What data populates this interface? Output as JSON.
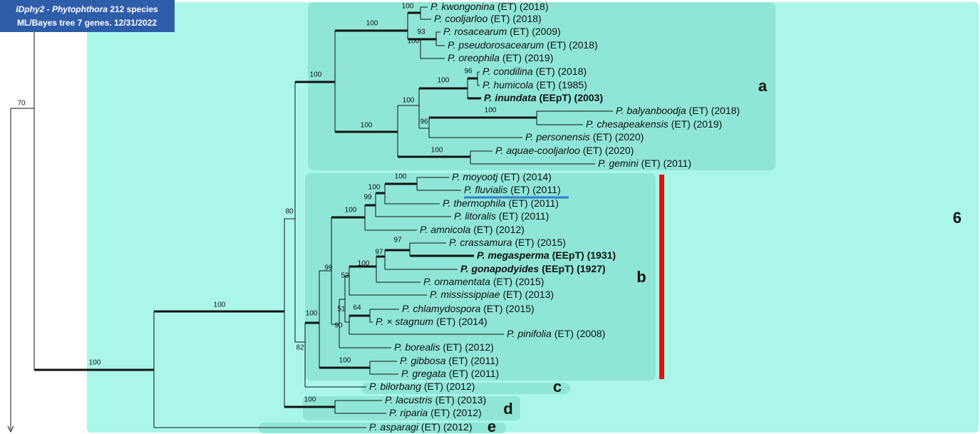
{
  "header": {
    "title": "IDphy2 - Phytophthora",
    "title_rest": "212 species",
    "subtitle": "ML/Bayes tree 7 genes. 12/31/2022"
  },
  "clade_labels": [
    "a",
    "b",
    "c",
    "d",
    "e",
    "6"
  ],
  "leaves": [
    {
      "species": "P. kwongonina",
      "info": "(ET) (2018)"
    },
    {
      "species": "P. cooljarloo",
      "info": "(ET) (2018)"
    },
    {
      "species": "P. rosacearum",
      "info": "(ET) (2009)"
    },
    {
      "species": "P. pseudorosacearum",
      "info": "(ET) (2018)"
    },
    {
      "species": "P. oreophila",
      "info": "(ET) (2019)"
    },
    {
      "species": "P. condilina",
      "info": "(ET) (2018)"
    },
    {
      "species": "P. humicola",
      "info": "(ET) (1985)"
    },
    {
      "species": "P. inundata",
      "info": "(EEpT) (2003)",
      "bold": true
    },
    {
      "species": "P. balyanboodja",
      "info": "(ET) (2018)"
    },
    {
      "species": "P. chesapeakensis",
      "info": "(ET) (2019)"
    },
    {
      "species": "P. personensis",
      "info": "(ET) (2020)"
    },
    {
      "species": "P. aquae-cooljarloo",
      "info": "(ET) (2020)"
    },
    {
      "species": "P. gemini",
      "info": "(ET) (2011)"
    },
    {
      "species": "P. moyootj",
      "info": "(ET) (2014)"
    },
    {
      "species": "P. fluvialis",
      "info": "(ET) (2011)"
    },
    {
      "species": "P. thermophila",
      "info": "(ET) (2011)"
    },
    {
      "species": "P. litoralis",
      "info": "(ET) (2011)"
    },
    {
      "species": "P. amnicola",
      "info": "(ET) (2012)"
    },
    {
      "species": "P. crassamura",
      "info": "(ET) (2015)"
    },
    {
      "species": "P. megasperma",
      "info": "(EEpT) (1931)",
      "bold": true
    },
    {
      "species": "P. gonapodyides",
      "info": "(EEpT) (1927)",
      "bold": true
    },
    {
      "species": "P. ornamentata",
      "info": "(ET) (2015)"
    },
    {
      "species": "P. mississippiae",
      "info": "(ET) (2013)"
    },
    {
      "species": "P. chlamydospora",
      "info": "(ET) (2015)"
    },
    {
      "species": "P. × stagnum",
      "info": "(ET) (2014)"
    },
    {
      "species": "P. pinifolia",
      "info": "(ET) (2008)"
    },
    {
      "species": "P. borealis",
      "info": "(ET) (2012)"
    },
    {
      "species": "P. gibbosa",
      "info": "(ET) (2011)"
    },
    {
      "species": "P. gregata",
      "info": "(ET) (2011)"
    },
    {
      "species": "P. bilorbang",
      "info": "(ET) (2012)"
    },
    {
      "species": "P. lacustris",
      "info": "(ET) (2013)"
    },
    {
      "species": "P. riparia",
      "info": "(ET) (2012)"
    },
    {
      "species": "P. asparagi",
      "info": "(ET) (2012)"
    }
  ],
  "support_values": [
    70,
    100,
    100,
    100,
    100,
    93,
    100,
    100,
    96,
    100,
    100,
    100,
    96,
    100,
    100,
    100,
    100,
    99,
    100,
    80,
    97,
    97,
    100,
    99,
    53,
    64,
    51,
    100,
    90,
    82,
    100,
    100
  ]
}
